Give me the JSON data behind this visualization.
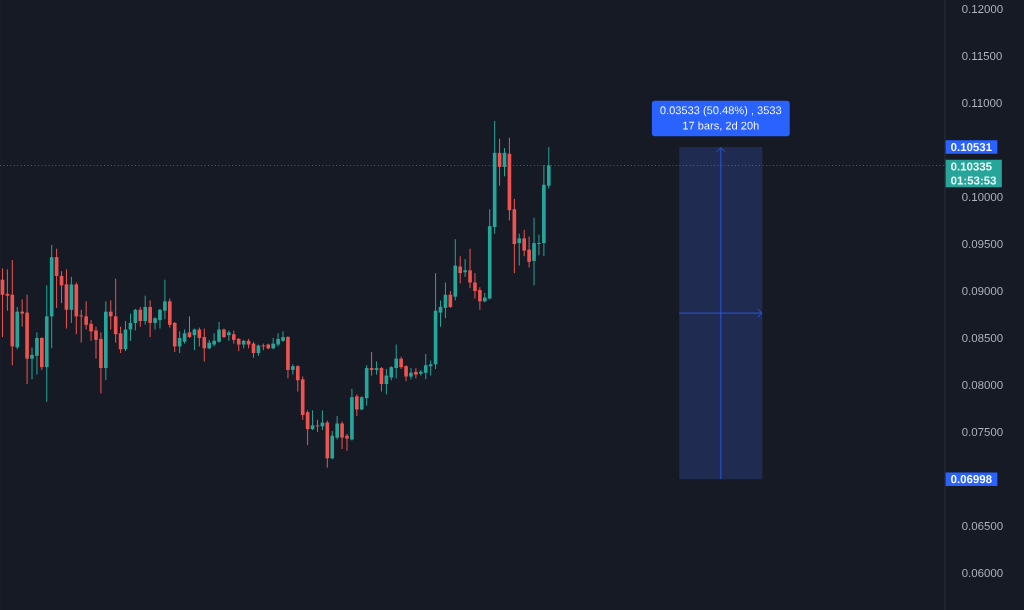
{
  "chart_data": {
    "type": "candlestick",
    "categories": [
      null,
      null,
      null,
      null,
      null,
      null,
      null,
      null,
      null,
      null,
      null,
      null,
      null,
      null,
      null,
      null,
      null,
      null,
      null,
      null,
      null,
      null,
      null,
      null,
      null,
      null,
      null,
      null,
      null,
      null,
      null,
      null,
      null,
      null,
      null,
      null,
      null,
      null,
      null,
      null,
      null,
      null,
      null,
      null,
      null,
      null,
      null,
      null,
      null,
      null,
      null,
      null,
      null,
      null,
      null,
      null,
      null,
      null,
      null,
      null,
      null,
      null,
      null,
      null,
      null,
      null,
      null,
      null,
      null,
      null,
      null,
      null,
      null,
      null,
      null,
      null,
      null,
      null,
      null,
      null,
      null,
      null,
      null,
      null,
      null,
      null,
      null,
      null,
      null,
      null,
      null,
      null,
      null,
      null,
      null,
      null,
      null,
      null,
      null,
      null,
      null,
      null,
      null,
      null,
      null,
      null,
      null,
      null,
      null,
      null,
      null,
      null,
      null,
      null,
      null,
      null,
      null,
      null,
      null,
      null,
      null,
      null,
      null,
      null,
      null,
      null,
      null,
      null,
      null,
      null,
      null,
      null,
      null,
      null,
      null,
      null,
      null,
      null,
      null,
      null,
      null,
      null,
      null,
      null,
      null,
      null,
      null,
      null,
      null,
      null,
      null,
      null,
      null,
      null,
      null,
      null,
      null,
      null,
      null,
      null,
      null,
      null,
      null,
      null,
      null,
      null,
      null,
      null,
      null,
      null,
      null,
      null,
      null,
      null,
      null,
      null,
      null,
      null,
      null,
      null,
      null,
      null,
      null,
      null,
      null,
      null,
      null,
      null,
      null,
      null,
      null,
      null
    ],
    "ohlc": [
      [
        0.0912,
        0.0924,
        0.0851,
        0.0896
      ],
      [
        0.0897,
        0.0923,
        0.0879,
        0.0895
      ],
      [
        0.0896,
        0.0933,
        0.0821,
        0.0841
      ],
      [
        0.084,
        0.0883,
        0.0838,
        0.0878
      ],
      [
        0.0878,
        0.0891,
        0.0862,
        0.0876
      ],
      [
        0.0877,
        0.0896,
        0.0801,
        0.0828
      ],
      [
        0.0828,
        0.084,
        0.0806,
        0.0832
      ],
      [
        0.0831,
        0.0856,
        0.0811,
        0.085
      ],
      [
        0.085,
        0.0851,
        0.0816,
        0.0819
      ],
      [
        0.0819,
        0.0906,
        0.0782,
        0.0873
      ],
      [
        0.0873,
        0.0949,
        0.0839,
        0.0936
      ],
      [
        0.0936,
        0.0945,
        0.0882,
        0.0916
      ],
      [
        0.0916,
        0.0921,
        0.0887,
        0.0906
      ],
      [
        0.0907,
        0.0923,
        0.086,
        0.088
      ],
      [
        0.088,
        0.0915,
        0.0866,
        0.0907
      ],
      [
        0.0907,
        0.0909,
        0.0854,
        0.0873
      ],
      [
        0.0874,
        0.088,
        0.0845,
        0.0873
      ],
      [
        0.0873,
        0.0889,
        0.0859,
        0.0864
      ],
      [
        0.0865,
        0.0869,
        0.0847,
        0.0857
      ],
      [
        0.0858,
        0.0862,
        0.0828,
        0.0848
      ],
      [
        0.0849,
        0.0856,
        0.0791,
        0.0818
      ],
      [
        0.0818,
        0.0889,
        0.0805,
        0.0878
      ],
      [
        0.0878,
        0.089,
        0.0859,
        0.0873
      ],
      [
        0.0873,
        0.0913,
        0.0845,
        0.0854
      ],
      [
        0.0855,
        0.0862,
        0.0834,
        0.0838
      ],
      [
        0.0838,
        0.0868,
        0.0836,
        0.0859
      ],
      [
        0.0859,
        0.0876,
        0.0847,
        0.0866
      ],
      [
        0.0866,
        0.0881,
        0.0858,
        0.088
      ],
      [
        0.088,
        0.0883,
        0.0862,
        0.0868
      ],
      [
        0.0868,
        0.0895,
        0.0864,
        0.0883
      ],
      [
        0.0883,
        0.089,
        0.0851,
        0.0866
      ],
      [
        0.0866,
        0.0872,
        0.0859,
        0.0871
      ],
      [
        0.0869,
        0.0881,
        0.086,
        0.088
      ],
      [
        0.0879,
        0.0912,
        0.087,
        0.0889
      ],
      [
        0.0889,
        0.0892,
        0.0861,
        0.0864
      ],
      [
        0.0866,
        0.0867,
        0.0835,
        0.0841
      ],
      [
        0.0841,
        0.0857,
        0.0834,
        0.085
      ],
      [
        0.0846,
        0.0859,
        0.0844,
        0.0855
      ],
      [
        0.0856,
        0.0873,
        0.085,
        0.0851
      ],
      [
        0.0853,
        0.086,
        0.0837,
        0.0859
      ],
      [
        0.0859,
        0.0861,
        0.0841,
        0.085
      ],
      [
        0.0851,
        0.086,
        0.0825,
        0.0839
      ],
      [
        0.0839,
        0.0848,
        0.0838,
        0.0845
      ],
      [
        0.0843,
        0.0855,
        0.0841,
        0.0847
      ],
      [
        0.0846,
        0.0867,
        0.0845,
        0.0859
      ],
      [
        0.0859,
        0.086,
        0.085,
        0.0851
      ],
      [
        0.0853,
        0.0858,
        0.0847,
        0.0856
      ],
      [
        0.0854,
        0.0858,
        0.0844,
        0.0848
      ],
      [
        0.0849,
        0.085,
        0.0836,
        0.0843
      ],
      [
        0.0843,
        0.0848,
        0.0839,
        0.0847
      ],
      [
        0.0847,
        0.0849,
        0.0839,
        0.0843
      ],
      [
        0.0844,
        0.0846,
        0.0829,
        0.0834
      ],
      [
        0.0834,
        0.0843,
        0.0831,
        0.0842
      ],
      [
        0.0842,
        0.0844,
        0.0837,
        0.0841
      ],
      [
        0.0843,
        0.0844,
        0.0838,
        0.0839
      ],
      [
        0.0839,
        0.085,
        0.0838,
        0.0844
      ],
      [
        0.0843,
        0.0855,
        0.0841,
        0.0849
      ],
      [
        0.0847,
        0.0857,
        0.0846,
        0.0851
      ],
      [
        0.0851,
        0.0852,
        0.0807,
        0.0816
      ],
      [
        0.0816,
        0.0822,
        0.0811,
        0.082
      ],
      [
        0.082,
        0.0821,
        0.0793,
        0.0805
      ],
      [
        0.0806,
        0.0809,
        0.0763,
        0.0768
      ],
      [
        0.0771,
        0.0773,
        0.0736,
        0.0753
      ],
      [
        0.0753,
        0.0773,
        0.0752,
        0.0757
      ],
      [
        0.0757,
        0.0763,
        0.075,
        0.0756
      ],
      [
        0.0756,
        0.0773,
        0.0752,
        0.076
      ],
      [
        0.076,
        0.0762,
        0.0712,
        0.0722
      ],
      [
        0.0722,
        0.0751,
        0.0721,
        0.0746
      ],
      [
        0.0744,
        0.0767,
        0.0742,
        0.0759
      ],
      [
        0.0759,
        0.0761,
        0.0732,
        0.0744
      ],
      [
        0.0746,
        0.0748,
        0.073,
        0.0743
      ],
      [
        0.0742,
        0.0796,
        0.0741,
        0.0787
      ],
      [
        0.0788,
        0.079,
        0.0767,
        0.0774
      ],
      [
        0.0774,
        0.0788,
        0.0773,
        0.0787
      ],
      [
        0.0786,
        0.0821,
        0.0778,
        0.0818
      ],
      [
        0.0818,
        0.0835,
        0.081,
        0.0816
      ],
      [
        0.0816,
        0.0825,
        0.0811,
        0.0818
      ],
      [
        0.0818,
        0.0819,
        0.0793,
        0.0801
      ],
      [
        0.0801,
        0.0817,
        0.079,
        0.081
      ],
      [
        0.0808,
        0.082,
        0.0805,
        0.0819
      ],
      [
        0.0818,
        0.0843,
        0.0807,
        0.0828
      ],
      [
        0.0828,
        0.083,
        0.0817,
        0.0819
      ],
      [
        0.082,
        0.0821,
        0.0804,
        0.0809
      ],
      [
        0.0809,
        0.0818,
        0.0806,
        0.0813
      ],
      [
        0.0814,
        0.0818,
        0.0807,
        0.0811
      ],
      [
        0.0812,
        0.0816,
        0.081,
        0.0814
      ],
      [
        0.0813,
        0.0833,
        0.0806,
        0.0821
      ],
      [
        0.082,
        0.0826,
        0.081,
        0.0822
      ],
      [
        0.0822,
        0.0919,
        0.0817,
        0.0879
      ],
      [
        0.0877,
        0.089,
        0.0862,
        0.0883
      ],
      [
        0.0882,
        0.0909,
        0.0871,
        0.0896
      ],
      [
        0.0896,
        0.09,
        0.0882,
        0.0883
      ],
      [
        0.0894,
        0.0955,
        0.089,
        0.0927
      ],
      [
        0.0926,
        0.0937,
        0.0908,
        0.0919
      ],
      [
        0.092,
        0.0934,
        0.0915,
        0.0922
      ],
      [
        0.0922,
        0.0945,
        0.0903,
        0.0909
      ],
      [
        0.0909,
        0.0919,
        0.0892,
        0.09
      ],
      [
        0.0901,
        0.0904,
        0.088,
        0.0889
      ],
      [
        0.0889,
        0.0898,
        0.0888,
        0.0893
      ],
      [
        0.0892,
        0.0987,
        0.0891,
        0.0969
      ],
      [
        0.0968,
        0.1081,
        0.0961,
        0.1047
      ],
      [
        0.1047,
        0.1062,
        0.1012,
        0.1032
      ],
      [
        0.1032,
        0.1052,
        0.1022,
        0.1047
      ],
      [
        0.1046,
        0.1063,
        0.0975,
        0.0986
      ],
      [
        0.0987,
        0.0998,
        0.0919,
        0.095
      ],
      [
        0.0951,
        0.0961,
        0.0927,
        0.0956
      ],
      [
        0.0956,
        0.0965,
        0.0937,
        0.0943
      ],
      [
        0.0944,
        0.0958,
        0.0925,
        0.0931
      ],
      [
        0.0932,
        0.0978,
        0.0906,
        0.0951
      ],
      [
        0.095,
        0.096,
        0.0938,
        0.0951
      ],
      [
        0.0951,
        0.1034,
        0.0937,
        0.1013
      ],
      [
        0.1012,
        0.10531,
        0.1009,
        0.10335
      ],
      null,
      null,
      null,
      null,
      null,
      null,
      null,
      null,
      null,
      null,
      null,
      null,
      null,
      null,
      null,
      null,
      null,
      null,
      null,
      null,
      null,
      null,
      null,
      null,
      null,
      null,
      null,
      null,
      null,
      null,
      null,
      null,
      null,
      null,
      null,
      null,
      null,
      null,
      null,
      null,
      null,
      null,
      null,
      null,
      null,
      null,
      null,
      null,
      null,
      null,
      null,
      null,
      null,
      null,
      null,
      null,
      null,
      null,
      null,
      null,
      null,
      null,
      null,
      null,
      null,
      null,
      null,
      null,
      null,
      null,
      null,
      null,
      null,
      null,
      null,
      null,
      null,
      null,
      null,
      null
    ],
    "colors": [
      "#ef5350",
      "#ef5350",
      "#ef5350",
      "#26a69a",
      "#ef5350",
      "#ef5350",
      "#26a69a",
      "#26a69a",
      "#ef5350",
      "#26a69a",
      "#26a69a",
      "#ef5350",
      "#ef5350",
      "#ef5350",
      "#26a69a",
      "#ef5350",
      "#ef5350",
      "#ef5350",
      "#ef5350",
      "#ef5350",
      "#ef5350",
      "#26a69a",
      "#ef5350",
      "#ef5350",
      "#ef5350",
      "#26a69a",
      "#26a69a",
      "#26a69a",
      "#ef5350",
      "#26a69a",
      "#ef5350",
      "#26a69a",
      "#26a69a",
      "#26a69a",
      "#ef5350",
      "#ef5350",
      "#26a69a",
      "#26a69a",
      "#ef5350",
      "#26a69a",
      "#ef5350",
      "#ef5350",
      "#26a69a",
      "#26a69a",
      "#26a69a",
      "#ef5350",
      "#26a69a",
      "#ef5350",
      "#ef5350",
      "#26a69a",
      "#ef5350",
      "#ef5350",
      "#26a69a",
      "#ef5350",
      "#ef5350",
      "#26a69a",
      "#26a69a",
      "#26a69a",
      "#ef5350",
      "#26a69a",
      "#ef5350",
      "#ef5350",
      "#ef5350",
      "#26a69a",
      "#ef5350",
      "#26a69a",
      "#ef5350",
      "#26a69a",
      "#26a69a",
      "#ef5350",
      "#ef5350",
      "#26a69a",
      "#ef5350",
      "#26a69a",
      "#26a69a",
      "#ef5350",
      "#26a69a",
      "#ef5350",
      "#26a69a",
      "#26a69a",
      "#26a69a",
      "#ef5350",
      "#ef5350",
      "#26a69a",
      "#ef5350",
      "#26a69a",
      "#26a69a",
      "#26a69a",
      "#26a69a",
      "#26a69a",
      "#26a69a",
      "#ef5350",
      "#26a69a",
      "#ef5350",
      "#26a69a",
      "#ef5350",
      "#ef5350",
      "#ef5350",
      "#26a69a",
      "#26a69a",
      "#26a69a",
      "#ef5350",
      "#26a69a",
      "#ef5350",
      "#ef5350",
      "#26a69a",
      "#ef5350",
      "#ef5350",
      "#26a69a",
      "#26a69a",
      "#26a69a",
      "#26a69a",
      null,
      null,
      null,
      null,
      null,
      null,
      null,
      null,
      null,
      null,
      null,
      null,
      null,
      null,
      null,
      null,
      null,
      null,
      null,
      null,
      null,
      null,
      null,
      null,
      null,
      null,
      null,
      null,
      null,
      null,
      null,
      null,
      null,
      null,
      null,
      null,
      null,
      null,
      null,
      null,
      null,
      null,
      null,
      null,
      null,
      null,
      null,
      null,
      null,
      null,
      null,
      null,
      null,
      null,
      null,
      null,
      null,
      null,
      null,
      null,
      null,
      null,
      null,
      null,
      null,
      null,
      null,
      null,
      null,
      null,
      null,
      null,
      null,
      null,
      null,
      null,
      null,
      null,
      null,
      null
    ],
    "ylim": [
      0.05606,
      0.12096
    ],
    "yticks": [
      {
        "value": 0.06,
        "label": "0.06000"
      },
      {
        "value": 0.065,
        "label": "0.06500"
      },
      {
        "value": 0.075,
        "label": "0.07500"
      },
      {
        "value": 0.08,
        "label": "0.08000"
      },
      {
        "value": 0.085,
        "label": "0.08500"
      },
      {
        "value": 0.09,
        "label": "0.09000"
      },
      {
        "value": 0.095,
        "label": "0.09500"
      },
      {
        "value": 0.1,
        "label": "0.10000"
      },
      {
        "value": 0.11,
        "label": "0.11000"
      },
      {
        "value": 0.115,
        "label": "0.11500"
      },
      {
        "value": 0.12,
        "label": "0.12000"
      }
    ],
    "tick_labels": "y",
    "ref_lines": [
      {
        "axis": "y",
        "value": 0.10335,
        "label": "0.10335",
        "color": "#26a69a",
        "line_style": "dotted"
      }
    ],
    "bands": [
      {
        "axis": "y",
        "from": 0.06998,
        "to": 0.10531,
        "color": "#1f2b50"
      }
    ],
    "annotations": [
      "0.03533 (50.48%) , 3533",
      "17 bars, 2d 20h",
      "0.10531",
      "0.06998",
      "01:53:53"
    ]
  }
}
